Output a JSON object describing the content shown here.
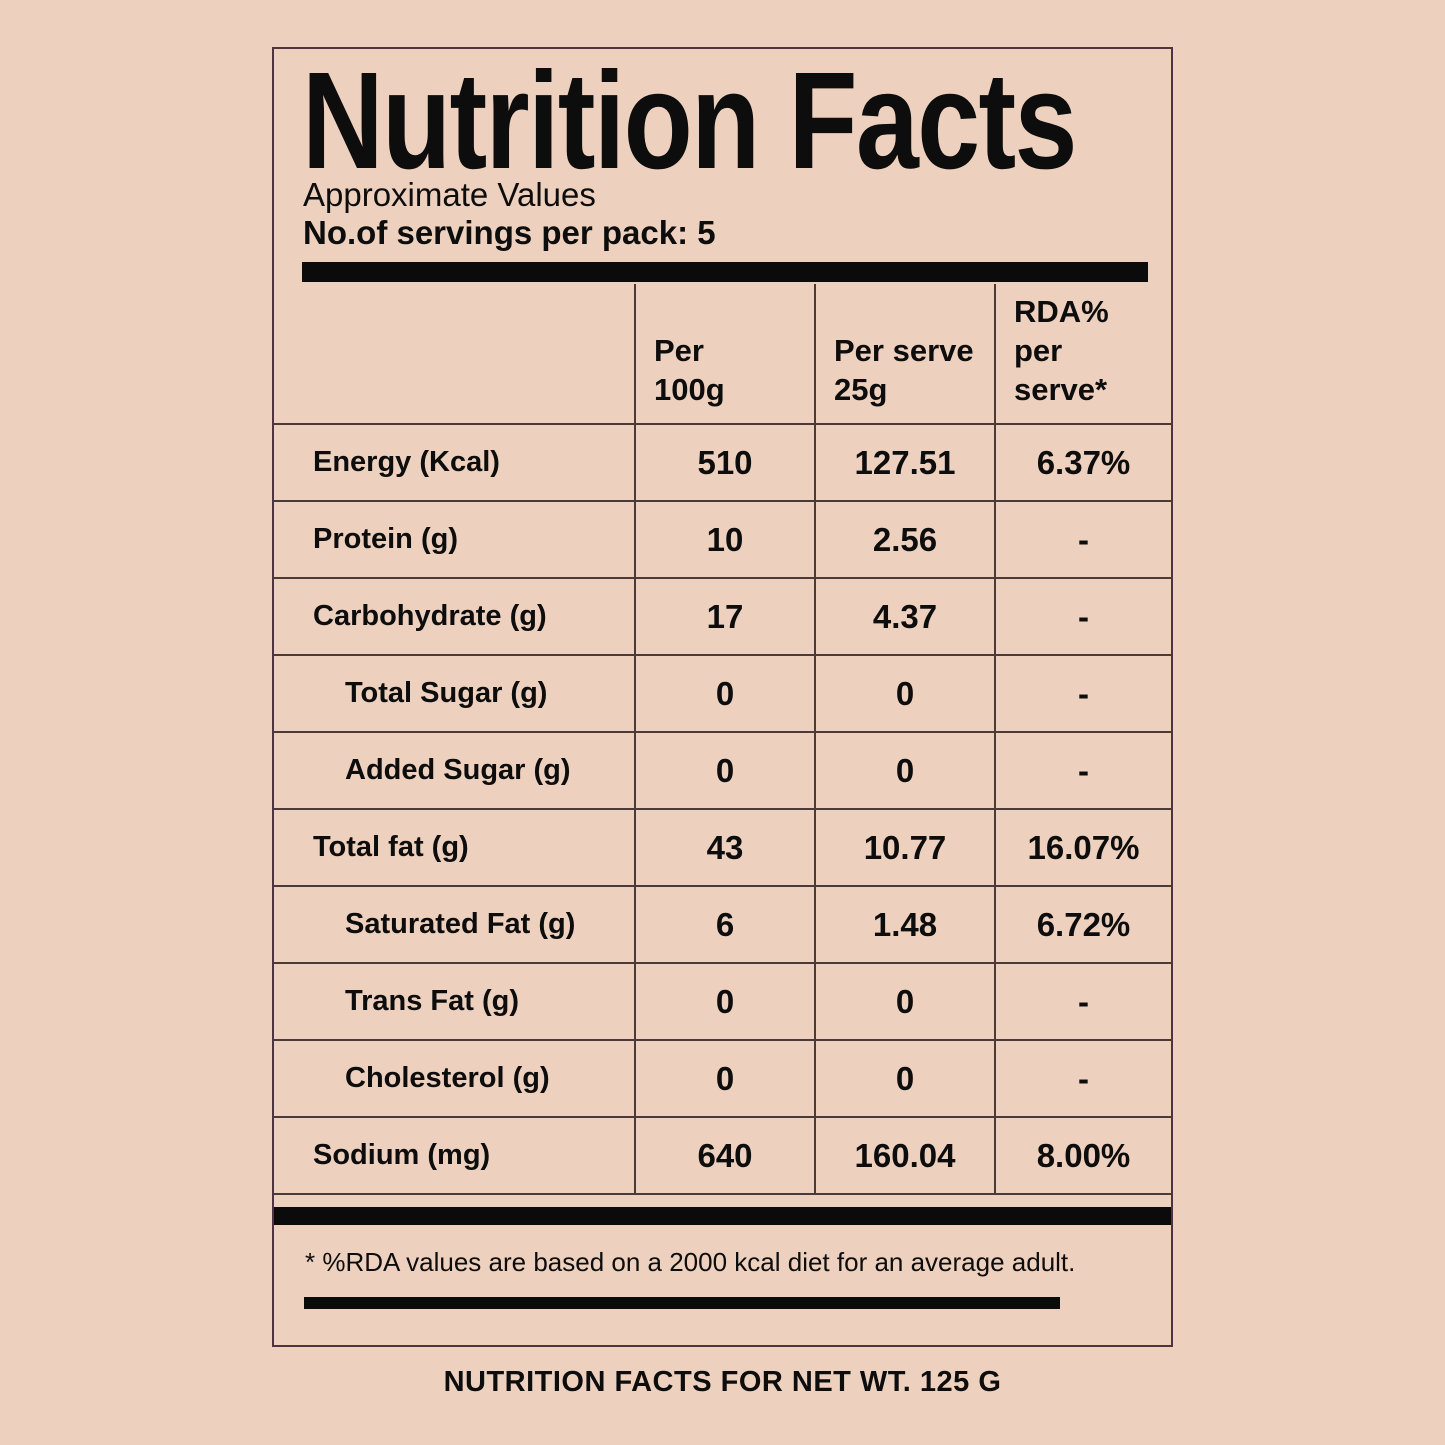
{
  "label": {
    "title": "Nutrition Facts",
    "subtitle": "Approximate Values",
    "servings_line": "No.of servings per pack: 5",
    "columns": [
      {
        "line1": "Per",
        "line2": "100g"
      },
      {
        "line1": "Per serve",
        "line2": "25g"
      },
      {
        "line1": "RDA% per",
        "line2": "serve*"
      }
    ],
    "rows": [
      {
        "name": "Energy (Kcal)",
        "indent": 1,
        "values": [
          "510",
          "127.51",
          "6.37%"
        ]
      },
      {
        "name": "Protein (g)",
        "indent": 1,
        "values": [
          "10",
          "2.56",
          "-"
        ]
      },
      {
        "name": "Carbohydrate (g)",
        "indent": 1,
        "values": [
          "17",
          "4.37",
          "-"
        ]
      },
      {
        "name": "Total Sugar (g)",
        "indent": 2,
        "values": [
          "0",
          "0",
          "-"
        ]
      },
      {
        "name": "Added Sugar (g)",
        "indent": 2,
        "values": [
          "0",
          "0",
          "-"
        ]
      },
      {
        "name": "Total fat (g)",
        "indent": 1,
        "values": [
          "43",
          "10.77",
          "16.07%"
        ]
      },
      {
        "name": "Saturated Fat (g)",
        "indent": 2,
        "values": [
          "6",
          "1.48",
          "6.72%"
        ]
      },
      {
        "name": "Trans Fat (g)",
        "indent": 2,
        "values": [
          "0",
          "0",
          "-"
        ]
      },
      {
        "name": "Cholesterol (g)",
        "indent": 2,
        "values": [
          "0",
          "0",
          "-"
        ]
      },
      {
        "name": "Sodium (mg)",
        "indent": 1,
        "values": [
          "640",
          "160.04",
          "8.00%"
        ]
      }
    ],
    "footnote": "* %RDA values are based on a 2000 kcal diet for an average adult.",
    "caption": "NUTRITION FACTS FOR NET WT. 125 G"
  },
  "colors": {
    "background": "#edd0be",
    "text": "#0d0d0d",
    "bar": "#0b0b0b",
    "grid": "#4a3a38",
    "box_border": "#4f3340"
  }
}
